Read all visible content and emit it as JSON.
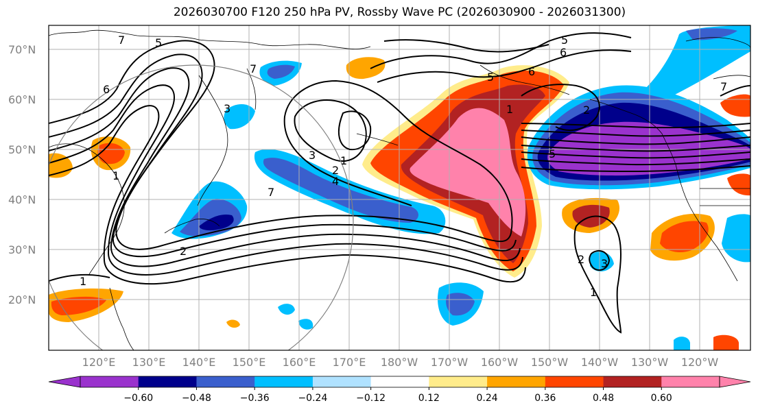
{
  "title": "2026030700 F120 250 hPa PV, Rossby Wave PC (2026030900 - 2026031300)",
  "lat_labels": [
    "70°N",
    "60°N",
    "50°N",
    "40°N",
    "30°N",
    "20°N"
  ],
  "lon_labels": [
    "120°E",
    "130°E",
    "140°E",
    "150°E",
    "160°E",
    "170°E",
    "180°W",
    "170°W",
    "160°W",
    "150°W",
    "140°W",
    "130°W",
    "120°W"
  ],
  "colorbar": {
    "colors": [
      "#9a32cd",
      "#00008b",
      "#3a5fcd",
      "#00bfff",
      "#b0e2ff",
      "#ffffff",
      "#ffec8b",
      "#ffa500",
      "#ff4500",
      "#b22222",
      "#ff82ab"
    ],
    "tick_labels": [
      "−0.60",
      "−0.48",
      "−0.36",
      "−0.24",
      "−0.12",
      "0.12",
      "0.24",
      "0.36",
      "0.48",
      "0.60"
    ]
  },
  "contour_labels": [
    "7",
    "6",
    "5",
    "4",
    "3",
    "2",
    "1",
    "7",
    "6",
    "5",
    "3",
    "2",
    "1",
    "1",
    "2",
    "3",
    "5",
    "6",
    "7",
    "2",
    "4",
    "7",
    "3",
    "2",
    "1"
  ],
  "colors": {
    "grid": "#b0b0b0",
    "land_outline": "#000000",
    "contour": "#000000",
    "circle": "#808080"
  }
}
